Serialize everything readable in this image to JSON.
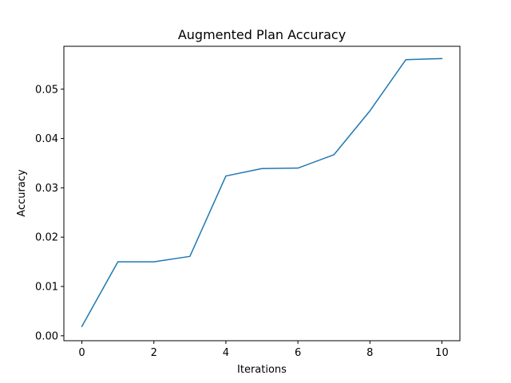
{
  "chart_data": {
    "type": "line",
    "title": "Augmented Plan Accuracy",
    "xlabel": "Iterations",
    "ylabel": "Accuracy",
    "xlim": [
      -0.5,
      10.5
    ],
    "ylim": [
      -0.001,
      0.0587
    ],
    "xticks": [
      0,
      2,
      4,
      6,
      8,
      10
    ],
    "xtick_labels": [
      "0",
      "2",
      "4",
      "6",
      "8",
      "10"
    ],
    "yticks": [
      0.0,
      0.01,
      0.02,
      0.03,
      0.04,
      0.05
    ],
    "ytick_labels": [
      "0.00",
      "0.01",
      "0.02",
      "0.03",
      "0.04",
      "0.05"
    ],
    "grid": false,
    "series": [
      {
        "color": "#1f77b4",
        "x": [
          0,
          1,
          2,
          3,
          4,
          5,
          6,
          7,
          8,
          9,
          10
        ],
        "y": [
          0.0019,
          0.015,
          0.015,
          0.0161,
          0.0324,
          0.0339,
          0.034,
          0.0367,
          0.0456,
          0.056,
          0.0562
        ]
      }
    ]
  }
}
